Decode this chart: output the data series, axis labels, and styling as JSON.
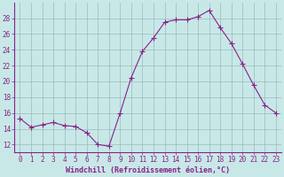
{
  "x": [
    0,
    1,
    2,
    3,
    4,
    5,
    6,
    7,
    8,
    9,
    10,
    11,
    12,
    13,
    14,
    15,
    16,
    17,
    18,
    19,
    20,
    21,
    22,
    23
  ],
  "y": [
    15.3,
    14.2,
    14.5,
    14.8,
    14.4,
    14.3,
    13.5,
    12.0,
    11.8,
    16.0,
    20.5,
    23.8,
    25.5,
    27.5,
    27.8,
    27.8,
    28.2,
    29.0,
    26.8,
    24.8,
    22.2,
    19.5,
    17.0,
    16.0
  ],
  "line_color": "#882288",
  "marker": "+",
  "marker_size": 4,
  "bg_color": "#c8e8e8",
  "grid_color": "#99bbbb",
  "xlabel": "Windchill (Refroidissement éolien,°C)",
  "xlabel_color": "#882288",
  "tick_color": "#882288",
  "axis_color": "#882288",
  "ylim": [
    11,
    30
  ],
  "xlim": [
    -0.5,
    23.5
  ],
  "yticks": [
    12,
    14,
    16,
    18,
    20,
    22,
    24,
    26,
    28
  ],
  "xticks": [
    0,
    1,
    2,
    3,
    4,
    5,
    6,
    7,
    8,
    9,
    10,
    11,
    12,
    13,
    14,
    15,
    16,
    17,
    18,
    19,
    20,
    21,
    22,
    23
  ],
  "tick_fontsize": 5.5,
  "xlabel_fontsize": 6.0
}
